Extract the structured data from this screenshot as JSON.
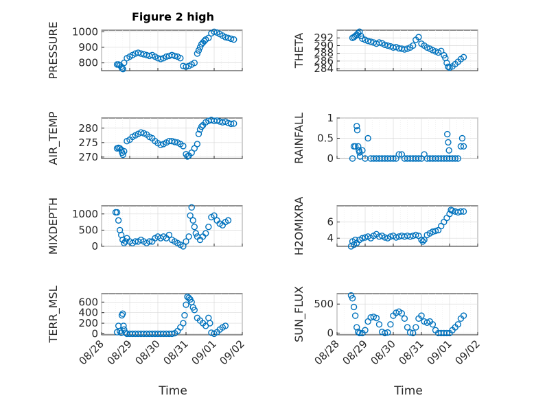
{
  "figure": {
    "title": "Figure 2 high",
    "xlabel": "Time",
    "marker_color": "#0072bd",
    "x_tick_labels": [
      "08/28",
      "08/29",
      "08/30",
      "08/31",
      "09/01",
      "09/02"
    ]
  },
  "chart_data": [
    {
      "type": "scatter",
      "name": "pressure",
      "ylabel": "PRESSURE",
      "xlim": [
        0,
        5
      ],
      "ylim": [
        750,
        1010
      ],
      "yticks": [
        800,
        900,
        1000
      ],
      "series": [
        {
          "x": [
            0.55,
            0.6,
            0.65,
            0.7,
            0.73,
            0.76,
            0.8,
            0.9,
            1.0,
            1.1,
            1.2,
            1.3,
            1.4,
            1.5,
            1.6,
            1.7,
            1.8,
            1.9,
            2.0,
            2.1,
            2.2,
            2.3,
            2.4,
            2.5,
            2.6,
            2.7,
            2.8,
            2.9,
            3.0,
            3.1,
            3.2,
            3.3,
            3.4,
            3.45,
            3.5,
            3.55,
            3.6,
            3.65,
            3.7,
            3.8,
            3.9,
            4.0,
            4.1,
            4.2,
            4.3,
            4.4,
            4.5,
            4.6,
            4.7
          ],
          "y": [
            790,
            790,
            785,
            775,
            765,
            760,
            800,
            830,
            840,
            850,
            860,
            865,
            860,
            855,
            850,
            845,
            850,
            840,
            830,
            825,
            830,
            840,
            845,
            850,
            845,
            840,
            830,
            780,
            775,
            780,
            790,
            800,
            860,
            880,
            900,
            920,
            930,
            940,
            950,
            960,
            990,
            1000,
            995,
            985,
            975,
            965,
            960,
            955,
            950
          ]
        }
      ]
    },
    {
      "type": "scatter",
      "name": "theta",
      "ylabel": "THETA",
      "xlim": [
        0,
        5
      ],
      "ylim": [
        283.5,
        294
      ],
      "yticks": [
        284,
        286,
        288,
        290,
        292
      ],
      "series": [
        {
          "x": [
            0.55,
            0.6,
            0.65,
            0.7,
            0.75,
            0.8,
            0.85,
            0.9,
            1.0,
            1.1,
            1.2,
            1.3,
            1.4,
            1.5,
            1.6,
            1.7,
            1.8,
            1.9,
            2.0,
            2.1,
            2.2,
            2.3,
            2.4,
            2.5,
            2.6,
            2.7,
            2.8,
            2.9,
            3.0,
            3.1,
            3.2,
            3.3,
            3.4,
            3.5,
            3.6,
            3.7,
            3.8,
            3.85,
            3.9,
            3.95,
            4.0,
            4.1,
            4.2,
            4.3,
            4.4,
            4.5
          ],
          "y": [
            292.0,
            292.2,
            292.5,
            292.8,
            293.2,
            293.6,
            292.5,
            291.8,
            291.5,
            291.2,
            291.0,
            290.8,
            290.5,
            290.8,
            290.6,
            290.2,
            290.0,
            289.8,
            289.5,
            289.6,
            289.3,
            289.2,
            289.0,
            289.2,
            289.5,
            290.0,
            291.5,
            292.2,
            290.5,
            290.0,
            289.5,
            289.2,
            288.8,
            288.5,
            288.2,
            288.6,
            287.5,
            286.8,
            285.5,
            284.5,
            284.3,
            284.6,
            285.2,
            285.8,
            286.5,
            287.0
          ]
        }
      ]
    },
    {
      "type": "scatter",
      "name": "air_temp",
      "ylabel": "AIR_TEMP",
      "xlim": [
        0,
        5
      ],
      "ylim": [
        269.5,
        283.5
      ],
      "yticks": [
        270,
        275,
        280
      ],
      "series": [
        {
          "x": [
            0.55,
            0.6,
            0.65,
            0.7,
            0.73,
            0.76,
            0.8,
            0.9,
            1.0,
            1.1,
            1.2,
            1.3,
            1.4,
            1.5,
            1.6,
            1.7,
            1.8,
            1.9,
            2.0,
            2.1,
            2.2,
            2.3,
            2.4,
            2.5,
            2.6,
            2.7,
            2.8,
            2.9,
            3.0,
            3.05,
            3.1,
            3.2,
            3.3,
            3.4,
            3.45,
            3.5,
            3.55,
            3.6,
            3.7,
            3.8,
            3.9,
            4.0,
            4.1,
            4.2,
            4.3,
            4.4,
            4.5,
            4.6,
            4.7
          ],
          "y": [
            273.0,
            273.2,
            273.0,
            272.5,
            271.5,
            270.8,
            272.0,
            275.5,
            276.0,
            277.0,
            277.5,
            278.0,
            278.5,
            278.2,
            277.8,
            277.0,
            276.5,
            275.5,
            274.8,
            274.2,
            274.5,
            275.0,
            275.5,
            275.5,
            275.2,
            275.0,
            274.5,
            273.8,
            271.0,
            270.2,
            270.5,
            271.5,
            273.0,
            274.5,
            278.0,
            279.5,
            280.5,
            281.0,
            282.0,
            282.5,
            282.8,
            282.5,
            282.6,
            282.3,
            282.0,
            282.2,
            281.8,
            281.5,
            281.6
          ]
        }
      ]
    },
    {
      "type": "scatter",
      "name": "rainfall",
      "ylabel": "RAINFALL",
      "xlim": [
        0,
        5
      ],
      "ylim": [
        0,
        1
      ],
      "yticks": [
        0,
        0.5,
        1
      ],
      "series": [
        {
          "x": [
            0.55,
            0.6,
            0.65,
            0.7,
            0.72,
            0.75,
            0.78,
            0.8,
            0.82,
            0.9,
            1.0,
            1.1,
            1.2,
            1.3,
            1.4,
            1.5,
            1.6,
            1.7,
            1.8,
            1.9,
            2.0,
            2.1,
            2.2,
            2.3,
            2.4,
            2.5,
            2.6,
            2.7,
            2.8,
            2.9,
            3.0,
            3.1,
            3.2,
            3.3,
            3.4,
            3.5,
            3.6,
            3.7,
            3.8,
            3.9,
            3.92,
            3.95,
            3.98,
            4.0,
            4.1,
            4.2,
            4.3,
            4.4,
            4.45,
            4.5
          ],
          "y": [
            0,
            0.3,
            0.3,
            0.8,
            0.7,
            0.3,
            0.2,
            0.15,
            0.05,
            0.2,
            0,
            0.5,
            0,
            0,
            0,
            0,
            0,
            0,
            0,
            0,
            0,
            0,
            0.1,
            0.1,
            0,
            0,
            0,
            0,
            0,
            0,
            0,
            0.1,
            0,
            0,
            0,
            0,
            0,
            0,
            0,
            0,
            0.6,
            0.4,
            0.2,
            0,
            0,
            0,
            0,
            0.3,
            0.5,
            0.3
          ]
        }
      ]
    },
    {
      "type": "scatter",
      "name": "mixdepth",
      "ylabel": "MIXDEPTH",
      "xlim": [
        0,
        5
      ],
      "ylim": [
        0,
        1250
      ],
      "yticks": [
        0,
        500,
        1000
      ],
      "series": [
        {
          "x": [
            0.5,
            0.55,
            0.6,
            0.65,
            0.7,
            0.75,
            0.8,
            0.85,
            0.9,
            1.0,
            1.1,
            1.2,
            1.3,
            1.4,
            1.5,
            1.6,
            1.7,
            1.8,
            1.9,
            2.0,
            2.1,
            2.2,
            2.3,
            2.4,
            2.5,
            2.6,
            2.7,
            2.8,
            2.9,
            3.0,
            3.1,
            3.15,
            3.2,
            3.25,
            3.3,
            3.35,
            3.4,
            3.5,
            3.6,
            3.7,
            3.8,
            3.9,
            4.0,
            4.1,
            4.2,
            4.3,
            4.4,
            4.5
          ],
          "y": [
            1050,
            1050,
            800,
            500,
            350,
            200,
            100,
            150,
            250,
            150,
            100,
            150,
            150,
            200,
            150,
            100,
            150,
            150,
            250,
            300,
            250,
            300,
            250,
            350,
            200,
            150,
            100,
            50,
            0,
            150,
            300,
            950,
            1200,
            800,
            600,
            400,
            300,
            200,
            300,
            400,
            600,
            900,
            950,
            800,
            700,
            650,
            750,
            800
          ]
        }
      ]
    },
    {
      "type": "scatter",
      "name": "h2omixra",
      "ylabel": "H2OMIXRA",
      "xlim": [
        0,
        5
      ],
      "ylim": [
        3,
        8
      ],
      "yticks": [
        4,
        6
      ],
      "series": [
        {
          "x": [
            0.5,
            0.55,
            0.6,
            0.65,
            0.7,
            0.8,
            0.9,
            1.0,
            1.1,
            1.2,
            1.3,
            1.4,
            1.5,
            1.6,
            1.7,
            1.8,
            1.9,
            2.0,
            2.1,
            2.2,
            2.3,
            2.4,
            2.5,
            2.6,
            2.7,
            2.8,
            2.9,
            3.0,
            3.05,
            3.1,
            3.2,
            3.3,
            3.4,
            3.5,
            3.6,
            3.7,
            3.8,
            3.9,
            4.0,
            4.05,
            4.1,
            4.2,
            4.3,
            4.4,
            4.5
          ],
          "y": [
            3.0,
            3.6,
            3.2,
            3.8,
            3.4,
            3.8,
            4.0,
            4.1,
            4.2,
            4.0,
            4.3,
            4.5,
            4.2,
            4.3,
            4.1,
            4.0,
            4.2,
            4.3,
            4.1,
            4.2,
            4.3,
            4.2,
            4.3,
            4.2,
            4.3,
            4.4,
            4.3,
            3.8,
            3.6,
            3.8,
            4.4,
            4.6,
            4.8,
            4.9,
            5.0,
            5.5,
            6.0,
            6.5,
            7.0,
            7.5,
            7.4,
            7.3,
            7.2,
            7.3,
            7.3
          ]
        }
      ]
    },
    {
      "type": "scatter",
      "name": "terr_msl",
      "ylabel": "TERR_MSL",
      "xlim": [
        0,
        5
      ],
      "ylim": [
        -20,
        760
      ],
      "yticks": [
        0,
        200,
        400,
        600
      ],
      "series": [
        {
          "x": [
            0.55,
            0.6,
            0.65,
            0.7,
            0.72,
            0.75,
            0.78,
            0.8,
            0.85,
            0.9,
            1.0,
            1.1,
            1.2,
            1.3,
            1.4,
            1.5,
            1.6,
            1.7,
            1.8,
            1.9,
            2.0,
            2.1,
            2.2,
            2.3,
            2.4,
            2.5,
            2.6,
            2.7,
            2.8,
            2.9,
            2.95,
            3.0,
            3.05,
            3.1,
            3.15,
            3.2,
            3.25,
            3.3,
            3.4,
            3.5,
            3.6,
            3.7,
            3.8,
            3.85,
            3.9,
            4.0,
            4.1,
            4.2,
            4.3,
            4.4
          ],
          "y": [
            30,
            150,
            50,
            20,
            350,
            380,
            150,
            80,
            20,
            0,
            0,
            0,
            0,
            0,
            0,
            0,
            0,
            0,
            0,
            0,
            0,
            0,
            0,
            0,
            0,
            0,
            10,
            50,
            120,
            200,
            350,
            550,
            700,
            680,
            650,
            600,
            500,
            450,
            300,
            250,
            200,
            150,
            300,
            200,
            20,
            0,
            30,
            80,
            120,
            150
          ]
        }
      ]
    },
    {
      "type": "scatter",
      "name": "sun_flux",
      "ylabel": "SUN_FLUX",
      "xlim": [
        0,
        5
      ],
      "ylim": [
        -30,
        680
      ],
      "yticks": [
        0,
        500
      ],
      "series": [
        {
          "x": [
            0.5,
            0.55,
            0.6,
            0.65,
            0.7,
            0.75,
            0.8,
            0.9,
            1.0,
            1.1,
            1.2,
            1.3,
            1.4,
            1.5,
            1.6,
            1.7,
            1.8,
            1.9,
            2.0,
            2.1,
            2.2,
            2.3,
            2.4,
            2.5,
            2.6,
            2.7,
            2.8,
            2.9,
            3.0,
            3.1,
            3.2,
            3.3,
            3.4,
            3.5,
            3.6,
            3.7,
            3.8,
            3.9,
            4.0,
            4.1,
            4.2,
            4.3,
            4.4,
            4.5
          ],
          "y": [
            650,
            600,
            450,
            300,
            100,
            20,
            0,
            0,
            50,
            200,
            270,
            280,
            260,
            150,
            20,
            0,
            10,
            150,
            300,
            350,
            370,
            340,
            250,
            100,
            10,
            0,
            100,
            250,
            300,
            200,
            180,
            200,
            150,
            50,
            0,
            0,
            0,
            0,
            0,
            50,
            100,
            150,
            250,
            300
          ]
        }
      ]
    }
  ]
}
